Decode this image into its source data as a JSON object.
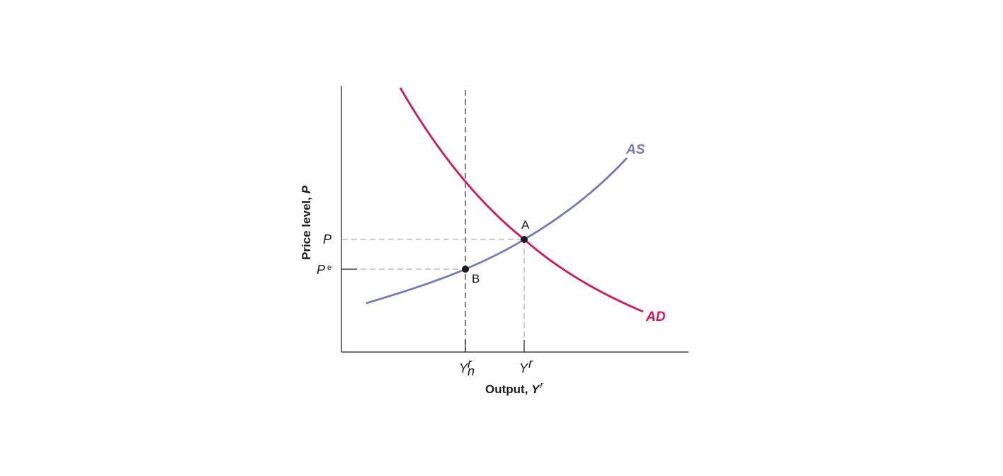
{
  "diagram": {
    "axes": {
      "x_title": {
        "text": "Output, ",
        "var": "Y",
        "sup": "r"
      },
      "y_title": {
        "text": "Price level, ",
        "var": "P"
      }
    },
    "x_ticks": [
      {
        "var": "Y",
        "sup": "r",
        "sub": "n"
      },
      {
        "var": "Y",
        "sup": "r",
        "sub": ""
      }
    ],
    "y_ticks": [
      {
        "var": "P",
        "sup": ""
      },
      {
        "var": "P",
        "sup": "e"
      }
    ],
    "curves": [
      {
        "name": "AS",
        "color": "#7679b8"
      },
      {
        "name": "AD",
        "color": "#d2165d"
      }
    ],
    "points": [
      {
        "label": "A"
      },
      {
        "label": "B"
      }
    ],
    "colors": {
      "axis": "#1a1a1a",
      "guide": "#9a9a9a",
      "vertical_line": "#5a5a5a"
    }
  }
}
